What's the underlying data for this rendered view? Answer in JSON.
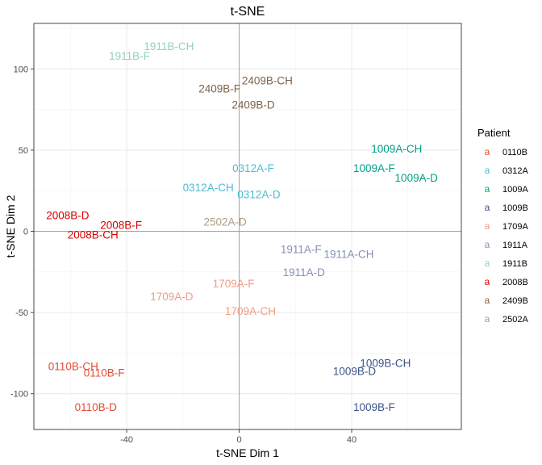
{
  "chart_data": {
    "type": "scatter",
    "title": "t-SNE",
    "xlabel": "t-SNE Dim 1",
    "ylabel": "t-SNE Dim 2",
    "xlim": [
      -73,
      79
    ],
    "ylim": [
      -122,
      128
    ],
    "xticks": [
      -40,
      0,
      40
    ],
    "yticks": [
      -100,
      -50,
      0,
      50,
      100
    ],
    "x_tick_labels": [
      "-40",
      "0",
      "40"
    ],
    "y_tick_labels": [
      "-100",
      "-50",
      "0",
      "50",
      "100"
    ],
    "grid": true,
    "zero_lines": true,
    "legend": {
      "title": "Patient",
      "position": "right",
      "key_glyph": "a",
      "entries": [
        {
          "name": "0110B",
          "color": "#E64B35"
        },
        {
          "name": "0312A",
          "color": "#4DBBD5"
        },
        {
          "name": "1009A",
          "color": "#00A087"
        },
        {
          "name": "1009B",
          "color": "#3C5488"
        },
        {
          "name": "1709A",
          "color": "#F39B7F"
        },
        {
          "name": "1911A",
          "color": "#8491B4"
        },
        {
          "name": "1911B",
          "color": "#91D1C2"
        },
        {
          "name": "2008B",
          "color": "#DC0000"
        },
        {
          "name": "2409B",
          "color": "#7E6148"
        },
        {
          "name": "2502A",
          "color": "#B09C85"
        }
      ]
    },
    "points": [
      {
        "label": "0110B-CH",
        "patient": "0110B",
        "x": -59,
        "y": -83
      },
      {
        "label": "0110B-F",
        "patient": "0110B",
        "x": -48,
        "y": -87
      },
      {
        "label": "0110B-D",
        "patient": "0110B",
        "x": -51,
        "y": -108
      },
      {
        "label": "0312A-F",
        "patient": "0312A",
        "x": 5,
        "y": 39
      },
      {
        "label": "0312A-CH",
        "patient": "0312A",
        "x": -11,
        "y": 27
      },
      {
        "label": "0312A-D",
        "patient": "0312A",
        "x": 7,
        "y": 23
      },
      {
        "label": "1009A-CH",
        "patient": "1009A",
        "x": 56,
        "y": 51
      },
      {
        "label": "1009A-F",
        "patient": "1009A",
        "x": 48,
        "y": 39
      },
      {
        "label": "1009A-D",
        "patient": "1009A",
        "x": 63,
        "y": 33
      },
      {
        "label": "1009B-CH",
        "patient": "1009B",
        "x": 52,
        "y": -81
      },
      {
        "label": "1009B-D",
        "patient": "1009B",
        "x": 41,
        "y": -86
      },
      {
        "label": "1009B-F",
        "patient": "1009B",
        "x": 48,
        "y": -108
      },
      {
        "label": "1709A-F",
        "patient": "1709A",
        "x": -2,
        "y": -32
      },
      {
        "label": "1709A-D",
        "patient": "1709A",
        "x": -24,
        "y": -40
      },
      {
        "label": "1709A-CH",
        "patient": "1709A",
        "x": 4,
        "y": -49
      },
      {
        "label": "1911A-F",
        "patient": "1911A",
        "x": 22,
        "y": -11
      },
      {
        "label": "1911A-CH",
        "patient": "1911A",
        "x": 39,
        "y": -14
      },
      {
        "label": "1911A-D",
        "patient": "1911A",
        "x": 23,
        "y": -25
      },
      {
        "label": "1911B-CH",
        "patient": "1911B",
        "x": -25,
        "y": 114
      },
      {
        "label": "1911B-F",
        "patient": "1911B",
        "x": -39,
        "y": 108
      },
      {
        "label": "2008B-D",
        "patient": "2008B",
        "x": -61,
        "y": 10
      },
      {
        "label": "2008B-F",
        "patient": "2008B",
        "x": -42,
        "y": 4
      },
      {
        "label": "2008B-CH",
        "patient": "2008B",
        "x": -52,
        "y": -2
      },
      {
        "label": "2409B-CH",
        "patient": "2409B",
        "x": 10,
        "y": 93
      },
      {
        "label": "2409B-F",
        "patient": "2409B",
        "x": -7,
        "y": 88
      },
      {
        "label": "2409B-D",
        "patient": "2409B",
        "x": 5,
        "y": 78
      },
      {
        "label": "2502A-D",
        "patient": "2502A",
        "x": -5,
        "y": 6
      }
    ]
  }
}
